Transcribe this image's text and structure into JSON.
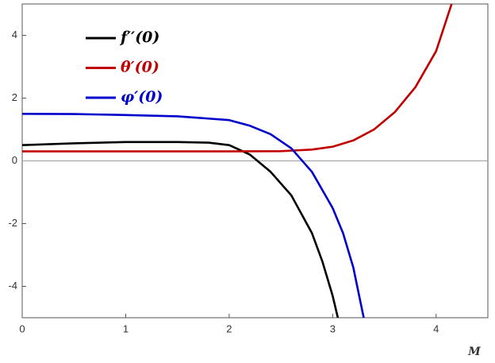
{
  "chart_data": {
    "type": "line",
    "xlabel": "M",
    "xlim": [
      0,
      4.5
    ],
    "ylim": [
      -5,
      5
    ],
    "xticks": [
      0,
      1,
      2,
      3,
      4
    ],
    "yticks": [
      -4,
      -2,
      0,
      2,
      4
    ],
    "zero_line": true,
    "legend": "upper left",
    "series": [
      {
        "name": "f′′(0)",
        "color": "#000000",
        "x": [
          0,
          0.5,
          1,
          1.5,
          1.8,
          2,
          2.2,
          2.4,
          2.6,
          2.8,
          2.9,
          3.0,
          3.05
        ],
        "values": [
          0.5,
          0.56,
          0.6,
          0.6,
          0.58,
          0.5,
          0.2,
          -0.35,
          -1.1,
          -2.3,
          -3.2,
          -4.3,
          -5
        ]
      },
      {
        "name": "θ′(0)",
        "color": "#c00000",
        "x": [
          0,
          1,
          2,
          2.5,
          2.8,
          3.0,
          3.2,
          3.4,
          3.6,
          3.8,
          4.0,
          4.15
        ],
        "values": [
          0.3,
          0.3,
          0.3,
          0.31,
          0.36,
          0.45,
          0.65,
          1.0,
          1.55,
          2.35,
          3.5,
          5
        ]
      },
      {
        "name": "φ′(0)",
        "color": "#0000cc",
        "x": [
          0,
          0.5,
          1,
          1.5,
          2,
          2.2,
          2.4,
          2.6,
          2.8,
          3.0,
          3.1,
          3.2,
          3.3
        ],
        "values": [
          1.5,
          1.49,
          1.46,
          1.42,
          1.3,
          1.12,
          0.85,
          0.4,
          -0.35,
          -1.5,
          -2.3,
          -3.4,
          -5
        ]
      }
    ]
  }
}
